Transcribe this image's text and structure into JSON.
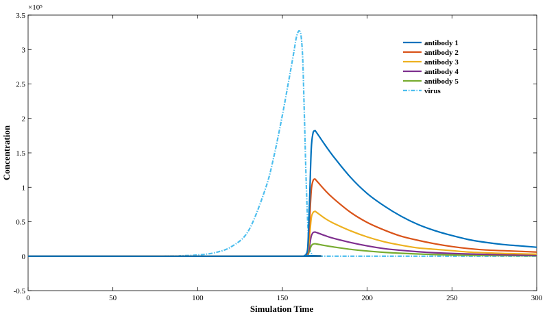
{
  "chart_data": {
    "type": "line",
    "title": "",
    "xlabel": "Simulation Time",
    "ylabel": "Concentration",
    "y_exponent_label": "×10⁵",
    "xlim": [
      0,
      300
    ],
    "ylim": [
      -0.5,
      3.5
    ],
    "y_scale_factor": 100000,
    "x_ticks": [
      0,
      50,
      100,
      150,
      200,
      250,
      300
    ],
    "y_ticks": [
      -0.5,
      0,
      0.5,
      1,
      1.5,
      2,
      2.5,
      3,
      3.5
    ],
    "x_tick_labels": [
      "0",
      "50",
      "100",
      "150",
      "200",
      "250",
      "300"
    ],
    "y_tick_labels": [
      "-0.5",
      "0",
      "0.5",
      "1",
      "1.5",
      "2",
      "2.5",
      "3",
      "3.5"
    ],
    "grid": false,
    "legend_position": "top-right",
    "series": [
      {
        "name": "antibody 1",
        "color": "#0072BD",
        "dash": "solid",
        "x": [
          0,
          160,
          163,
          164,
          165,
          166,
          167,
          168,
          169,
          170,
          175,
          180,
          190,
          200,
          210,
          220,
          230,
          240,
          250,
          260,
          270,
          280,
          290,
          300
        ],
        "y": [
          0,
          0,
          0.01,
          0.03,
          0.15,
          0.8,
          1.55,
          1.78,
          1.82,
          1.8,
          1.62,
          1.45,
          1.15,
          0.91,
          0.73,
          0.58,
          0.46,
          0.37,
          0.3,
          0.24,
          0.2,
          0.17,
          0.15,
          0.13
        ]
      },
      {
        "name": "antibody 2",
        "color": "#D95319",
        "dash": "solid",
        "x": [
          0,
          160,
          163,
          164,
          165,
          166,
          167,
          168,
          169,
          170,
          175,
          180,
          190,
          200,
          210,
          220,
          230,
          240,
          250,
          260,
          270,
          280,
          290,
          300
        ],
        "y": [
          0,
          0,
          0.01,
          0.02,
          0.09,
          0.5,
          0.95,
          1.09,
          1.12,
          1.1,
          0.96,
          0.84,
          0.64,
          0.49,
          0.38,
          0.29,
          0.23,
          0.18,
          0.14,
          0.11,
          0.09,
          0.08,
          0.07,
          0.06
        ]
      },
      {
        "name": "antibody 3",
        "color": "#EDB120",
        "dash": "solid",
        "x": [
          0,
          160,
          163,
          164,
          165,
          166,
          167,
          168,
          169,
          170,
          175,
          180,
          190,
          200,
          210,
          220,
          230,
          240,
          250,
          260,
          270,
          280,
          290,
          300
        ],
        "y": [
          0,
          0,
          0.005,
          0.01,
          0.05,
          0.28,
          0.55,
          0.63,
          0.65,
          0.64,
          0.55,
          0.48,
          0.37,
          0.28,
          0.21,
          0.16,
          0.12,
          0.1,
          0.08,
          0.06,
          0.05,
          0.04,
          0.035,
          0.03
        ]
      },
      {
        "name": "antibody 4",
        "color": "#7E2F8E",
        "dash": "solid",
        "x": [
          0,
          160,
          163,
          164,
          165,
          166,
          167,
          168,
          169,
          170,
          175,
          180,
          190,
          200,
          210,
          220,
          230,
          240,
          250,
          260,
          270,
          280,
          290,
          300
        ],
        "y": [
          0,
          0,
          0.003,
          0.006,
          0.03,
          0.15,
          0.29,
          0.34,
          0.35,
          0.345,
          0.3,
          0.26,
          0.2,
          0.15,
          0.11,
          0.085,
          0.065,
          0.05,
          0.04,
          0.032,
          0.026,
          0.022,
          0.018,
          0.015
        ]
      },
      {
        "name": "antibody 5",
        "color": "#77AC30",
        "dash": "solid",
        "x": [
          0,
          160,
          163,
          164,
          165,
          166,
          167,
          168,
          169,
          170,
          175,
          180,
          190,
          200,
          210,
          220,
          230,
          240,
          250,
          260,
          270,
          280,
          290,
          300
        ],
        "y": [
          0,
          0,
          0.002,
          0.004,
          0.015,
          0.08,
          0.15,
          0.175,
          0.18,
          0.178,
          0.155,
          0.135,
          0.1,
          0.075,
          0.056,
          0.042,
          0.032,
          0.024,
          0.018,
          0.014,
          0.011,
          0.009,
          0.007,
          0.006
        ]
      },
      {
        "name": "virus",
        "color": "#4DBEEE",
        "dash": "dashdot",
        "x": [
          0,
          80,
          90,
          100,
          110,
          120,
          130,
          140,
          145,
          150,
          153,
          155,
          157,
          158,
          159,
          160,
          161,
          162,
          163,
          164,
          165,
          166,
          168,
          170,
          180,
          300
        ],
        "y": [
          0,
          0.002,
          0.007,
          0.018,
          0.05,
          0.14,
          0.37,
          0.98,
          1.45,
          2.05,
          2.45,
          2.72,
          3.0,
          3.15,
          3.24,
          3.27,
          3.2,
          2.85,
          2.0,
          1.1,
          0.45,
          0.12,
          0.01,
          0,
          0,
          0
        ]
      }
    ]
  }
}
